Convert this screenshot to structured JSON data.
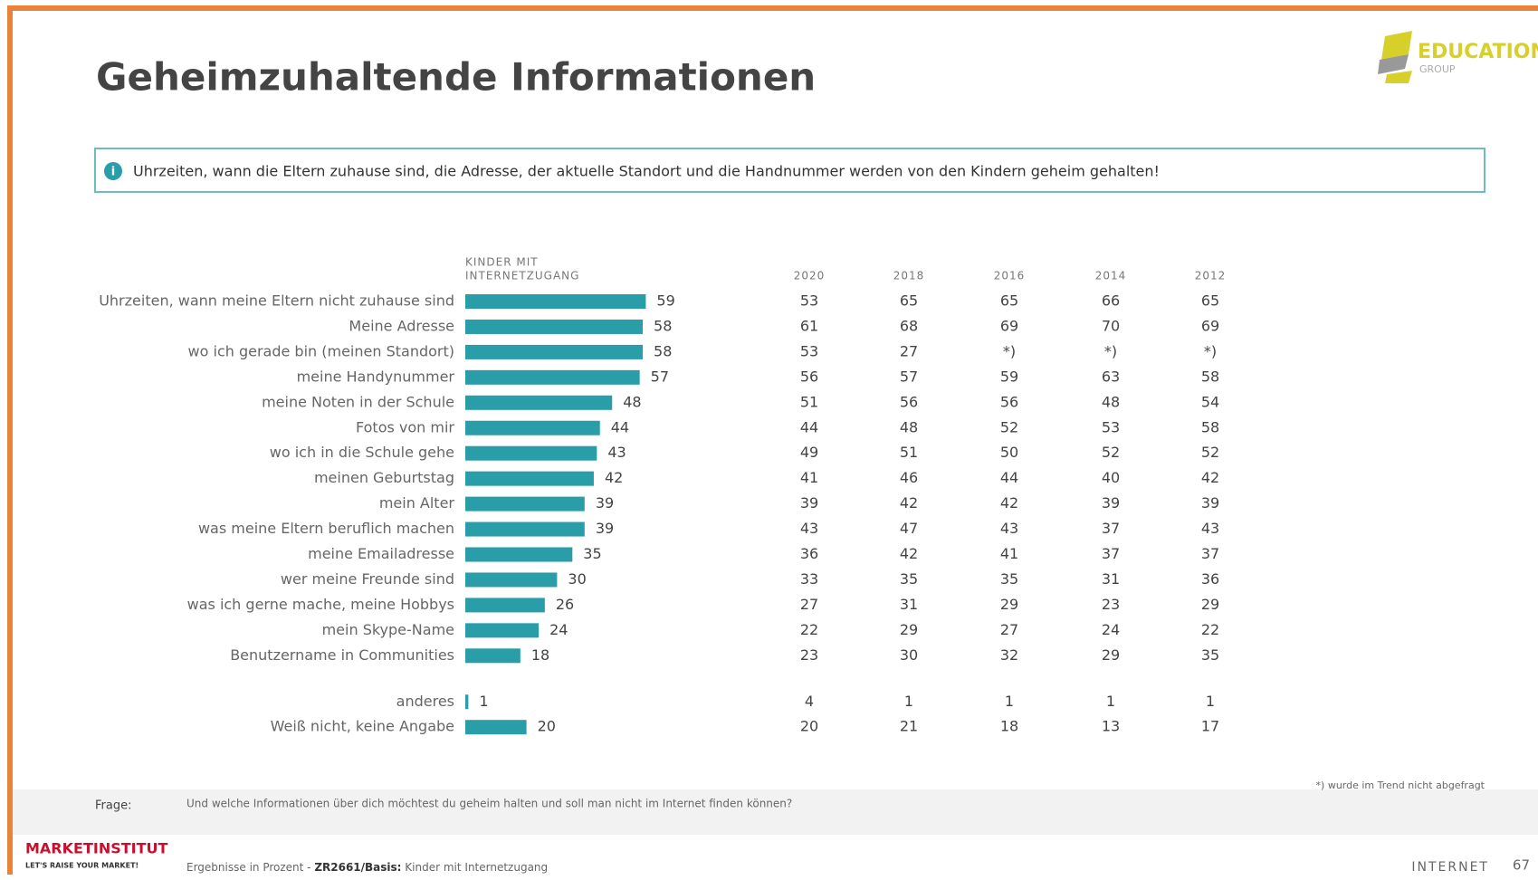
{
  "header": {
    "title": "Geheimzuhaltende Informationen",
    "logo": "EDUCATION",
    "logo_sub": "GROUP"
  },
  "info": "Uhrzeiten, wann die Eltern zuhause sind, die Adresse, der aktuelle Standort und die Handnummer werden von den Kindern geheim gehalten!",
  "chart_data": {
    "type": "bar",
    "orientation": "horizontal",
    "column_header": [
      "KINDER MIT",
      "INTERNETZUGANG"
    ],
    "color": "#2a9ea8",
    "categories": [
      "Uhrzeiten, wann meine Eltern nicht zuhause sind",
      "Meine Adresse",
      "wo ich gerade bin (meinen Standort)",
      "meine Handynummer",
      "meine Noten in der Schule",
      "Fotos von mir",
      "wo ich in die Schule gehe",
      "meinen Geburtstag",
      "mein Alter",
      "was meine Eltern beruflich machen",
      "meine Emailadresse",
      "wer meine Freunde sind",
      "was ich gerne mache, meine Hobbys",
      "mein Skype-Name",
      "Benutzername in Communities",
      "anderes",
      "Weiß nicht, keine Angabe"
    ],
    "values": [
      59,
      58,
      58,
      57,
      48,
      44,
      43,
      42,
      39,
      39,
      35,
      30,
      26,
      24,
      18,
      1,
      20
    ]
  },
  "trend": {
    "years": [
      "2020",
      "2018",
      "2016",
      "2014",
      "2012"
    ],
    "rows": [
      [
        53,
        65,
        65,
        66,
        65
      ],
      [
        61,
        68,
        69,
        70,
        69
      ],
      [
        53,
        27,
        "*)",
        "*)",
        "*)"
      ],
      [
        56,
        57,
        59,
        63,
        58
      ],
      [
        51,
        56,
        56,
        48,
        54
      ],
      [
        44,
        48,
        52,
        53,
        58
      ],
      [
        49,
        51,
        50,
        52,
        52
      ],
      [
        41,
        46,
        44,
        40,
        42
      ],
      [
        39,
        42,
        42,
        39,
        39
      ],
      [
        43,
        47,
        43,
        37,
        43
      ],
      [
        36,
        42,
        41,
        37,
        37
      ],
      [
        33,
        35,
        35,
        31,
        36
      ],
      [
        27,
        31,
        29,
        23,
        29
      ],
      [
        22,
        29,
        27,
        24,
        22
      ],
      [
        23,
        30,
        32,
        29,
        35
      ],
      [
        4,
        1,
        1,
        1,
        1
      ],
      [
        20,
        21,
        18,
        13,
        17
      ]
    ],
    "footnote": "*) wurde im Trend nicht abgefragt"
  },
  "footer": {
    "question_label": "Frage:",
    "question": "Und welche Informationen über dich möchtest du geheim halten und soll man nicht im Internet finden können?",
    "brand": "MARKETINSTITUT",
    "slogan": "LET'S RAISE YOUR MARKET!",
    "basis": [
      "Ergebnisse in Prozent - ",
      "ZR2661/Basis:",
      " Kinder mit Internetzugang"
    ],
    "section": "INTERNET",
    "page": "67"
  }
}
